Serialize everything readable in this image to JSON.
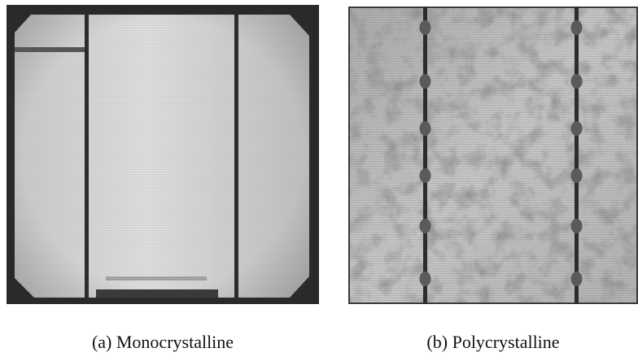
{
  "figure": {
    "panels": [
      {
        "id": "a",
        "caption": "(a) Monocrystalline",
        "subject": "monocrystalline-solar-cell-el-image"
      },
      {
        "id": "b",
        "caption": "(b) Polycrystalline",
        "subject": "polycrystalline-solar-cell-el-image"
      }
    ],
    "colors": {
      "cell_bright": "#dcdcdc",
      "cell_mid": "#b4b4b4",
      "busbar": "#2c2c2c",
      "frame": "#2a2a2a"
    }
  }
}
